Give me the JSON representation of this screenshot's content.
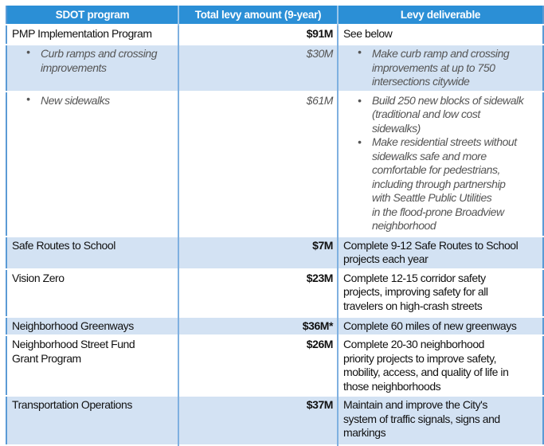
{
  "headers": [
    "SDOT program",
    "Total levy amount (9-year)",
    "Levy deliverable"
  ],
  "colors": {
    "header": "#2b8fd6",
    "shade": "#d3e2f3",
    "border": "#5b9bd5"
  },
  "rows": [
    {
      "program": "PMP Implementation Program",
      "amount": "$91M",
      "deliverable": "See below"
    },
    {
      "program": "Curb ramps and crossing\nimprovements",
      "amount": "$30M",
      "deliverable": "Make curb ramp and crossing\nimprovements at up to 750\nintersections citywide"
    },
    {
      "program": "New sidewalks",
      "amount": "$61M",
      "deliverable": "Build 250 new blocks of sidewalk\n(traditional and low cost\nsidewalks)",
      "deliverable2": "Make residential streets without\nsidewalks safe and more\ncomfortable for pedestrians,\nincluding through partnership\nwith Seattle Public Utilities\nin the flood-prone Broadview\nneighborhood"
    },
    {
      "program": "Safe Routes to School",
      "amount": "$7M",
      "deliverable": "Complete 9-12 Safe Routes to School\nprojects each year"
    },
    {
      "program": "Vision Zero",
      "amount": "$23M",
      "deliverable": "Complete 12-15 corridor safety\nprojects, improving safety for all\ntravelers on high-crash streets"
    },
    {
      "program": "Neighborhood Greenways",
      "amount": "$36M*",
      "deliverable": "Complete 60 miles of new greenways"
    },
    {
      "program": "Neighborhood Street Fund\nGrant Program",
      "amount": "$26M",
      "deliverable": "Complete 20-30 neighborhood\npriority projects to improve safety,\nmobility, access, and quality of life in\nthose neighborhoods"
    },
    {
      "program": "Transportation Operations",
      "amount": "$37M",
      "deliverable": "Maintain and improve the City's\nsystem of traffic signals, signs and\nmarkings"
    }
  ]
}
